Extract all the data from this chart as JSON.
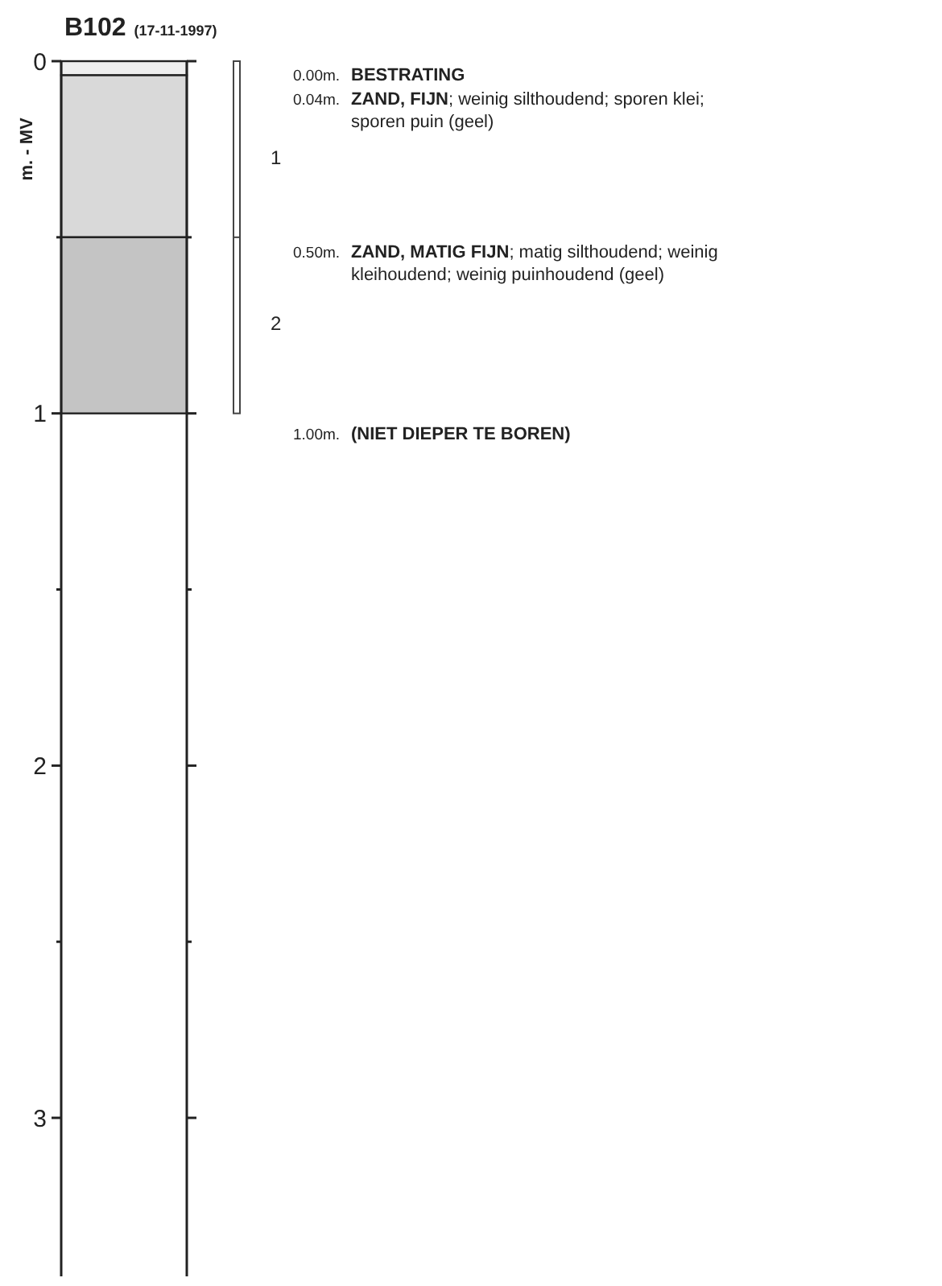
{
  "chart_data": {
    "type": "bar",
    "title": "B102",
    "subtitle": "(17-11-1997)",
    "ylabel": "m. - MV",
    "stacked": true,
    "categories": [
      null
    ],
    "series": [
      {
        "color": "#eeeeee",
        "values": [
          0.04
        ]
      },
      {
        "color": "#d9d9d9",
        "values": [
          0.46
        ]
      },
      {
        "color": "#c4c4c4",
        "values": [
          0.5
        ]
      }
    ],
    "ylim": [
      3.45,
      0
    ],
    "yticks": [
      0,
      {
        "value": 0.5,
        "label": null
      },
      1,
      {
        "value": 1.5,
        "label": null
      },
      2,
      {
        "value": 2.5,
        "label": null
      },
      3
    ],
    "legend": false,
    "grid": false,
    "annotations": [
      "0.00m. BESTRATING",
      "0.04m. ZAND, FIJN; weinig silthoudend; sporen klei; sporen puin (geel)",
      "1",
      "0.50m. ZAND, MATIG FIJN; matig silthoudend; weinig kleihoudend; weinig puinhoudend (geel)",
      "2",
      "1.00m. (NIET DIEPER TE BOREN)"
    ]
  }
}
